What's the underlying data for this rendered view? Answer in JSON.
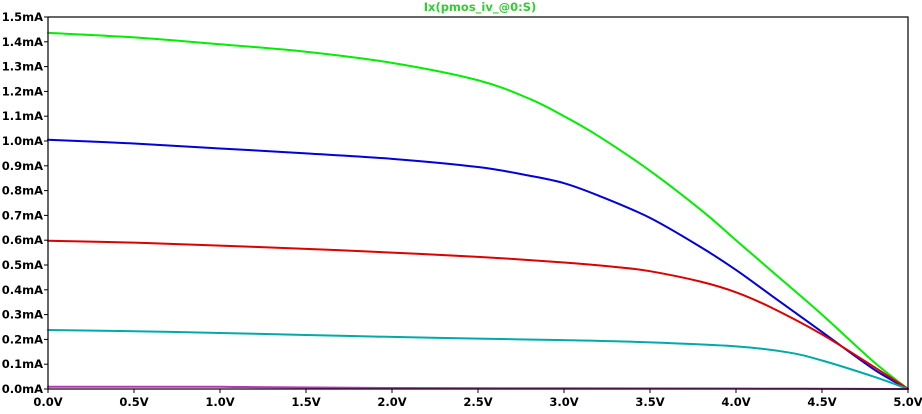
{
  "chart_data": {
    "type": "line",
    "title": "Ix(pmos_iv_@0:S)",
    "title_color": "#33cc33",
    "xlabel": "",
    "ylabel": "",
    "xlim": [
      0,
      5
    ],
    "ylim": [
      0,
      1.5
    ],
    "x_ticks": [
      0,
      0.5,
      1.0,
      1.5,
      2.0,
      2.5,
      3.0,
      3.5,
      4.0,
      4.5,
      5.0
    ],
    "x_tick_labels": [
      "0.0V",
      "0.5V",
      "1.0V",
      "1.5V",
      "2.0V",
      "2.5V",
      "3.0V",
      "3.5V",
      "4.0V",
      "4.5V",
      "5.0V"
    ],
    "y_ticks": [
      0,
      0.1,
      0.2,
      0.3,
      0.4,
      0.5,
      0.6,
      0.7,
      0.8,
      0.9,
      1.0,
      1.1,
      1.2,
      1.3,
      1.4,
      1.5
    ],
    "y_tick_labels": [
      "0.0mA",
      "0.1mA",
      "0.2mA",
      "0.3mA",
      "0.4mA",
      "0.5mA",
      "0.6mA",
      "0.7mA",
      "0.8mA",
      "0.9mA",
      "1.0mA",
      "1.1mA",
      "1.2mA",
      "1.3mA",
      "1.4mA",
      "1.5mA"
    ],
    "grid": false,
    "series": [
      {
        "color": "#00ee00",
        "x": [
          0,
          0.5,
          1.0,
          1.5,
          2.0,
          2.5,
          2.8,
          3.0,
          3.2,
          3.5,
          3.8,
          4.0,
          4.2,
          4.5,
          4.8,
          5.0
        ],
        "y": [
          1.436,
          1.418,
          1.39,
          1.36,
          1.315,
          1.245,
          1.17,
          1.1,
          1.02,
          0.88,
          0.72,
          0.6,
          0.48,
          0.3,
          0.11,
          0.0
        ]
      },
      {
        "color": "#0000dd",
        "x": [
          0,
          0.5,
          1.0,
          1.5,
          2.0,
          2.5,
          2.8,
          3.0,
          3.2,
          3.5,
          3.8,
          4.0,
          4.2,
          4.5,
          4.8,
          5.0
        ],
        "y": [
          1.005,
          0.99,
          0.97,
          0.95,
          0.928,
          0.895,
          0.86,
          0.83,
          0.78,
          0.69,
          0.57,
          0.48,
          0.38,
          0.23,
          0.08,
          0.0
        ]
      },
      {
        "color": "#dd0000",
        "x": [
          0,
          0.5,
          1.0,
          1.5,
          2.0,
          2.5,
          3.0,
          3.3,
          3.5,
          3.8,
          4.0,
          4.2,
          4.5,
          4.8,
          5.0
        ],
        "y": [
          0.598,
          0.59,
          0.578,
          0.565,
          0.55,
          0.533,
          0.51,
          0.492,
          0.475,
          0.432,
          0.39,
          0.33,
          0.22,
          0.09,
          0.0
        ]
      },
      {
        "color": "#00aaaa",
        "x": [
          0,
          0.5,
          1.0,
          1.5,
          2.0,
          2.5,
          3.0,
          3.5,
          4.0,
          4.3,
          4.5,
          4.8,
          5.0
        ],
        "y": [
          0.238,
          0.233,
          0.226,
          0.218,
          0.21,
          0.203,
          0.197,
          0.188,
          0.172,
          0.148,
          0.115,
          0.05,
          0.0
        ]
      },
      {
        "color": "#bb33bb",
        "x": [
          0,
          0.5,
          1.0,
          1.15,
          2.0,
          3.0,
          4.0,
          5.0
        ],
        "y": [
          0.009,
          0.009,
          0.009,
          0.008,
          0.004,
          0.003,
          0.002,
          0.0
        ]
      }
    ]
  }
}
